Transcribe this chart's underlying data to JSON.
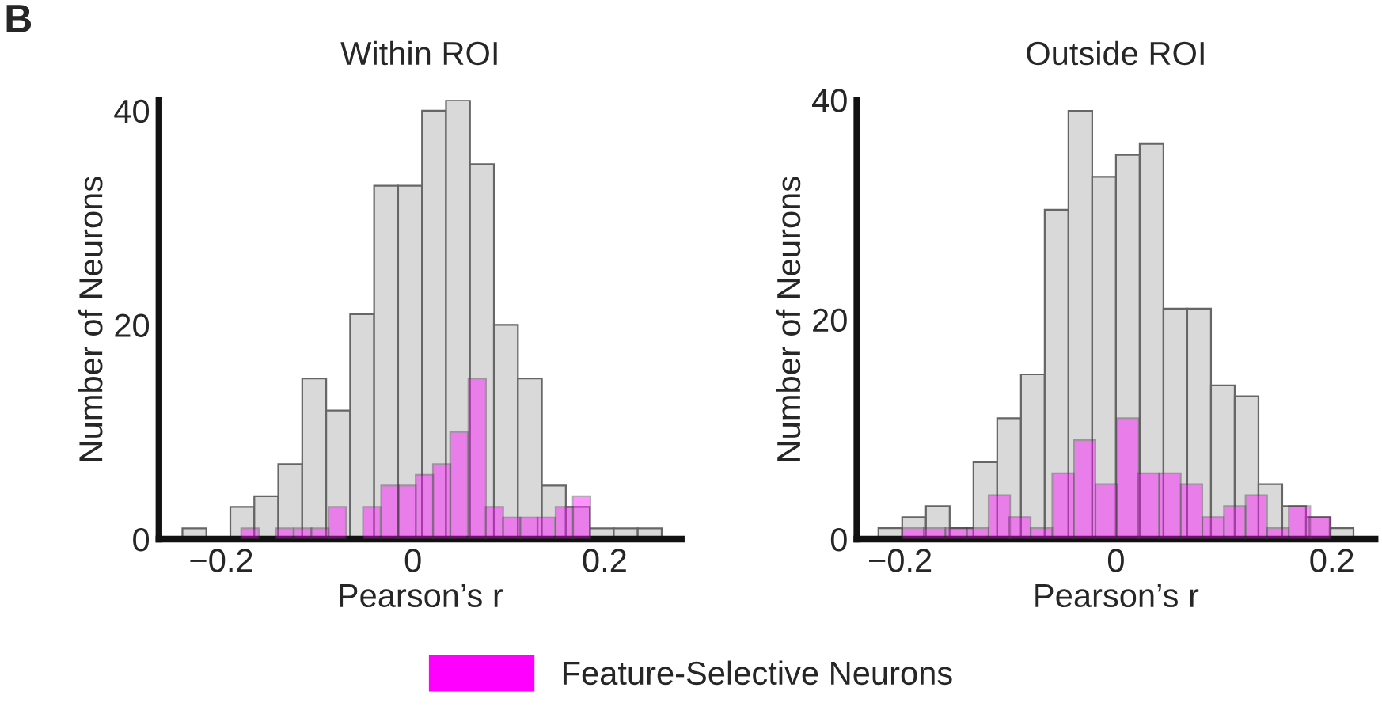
{
  "chart_data": [
    {
      "type": "bar",
      "title": "Within ROI",
      "xlabel": "Pearson’s r",
      "ylabel": "Number of Neurons",
      "annotations": [
        "B"
      ],
      "legend": "bottom",
      "xlim": [
        -0.265,
        0.28
      ],
      "ylim": [
        0,
        41
      ],
      "xticks": [
        {
          "value": -0.2,
          "label": "−0.2"
        },
        0,
        0.2
      ],
      "yticks": [
        0,
        20,
        40
      ],
      "series": [
        {
          "color": "#d9d9d9",
          "x": [
            -0.228,
            -0.203,
            -0.178,
            -0.153,
            -0.128,
            -0.103,
            -0.078,
            -0.053,
            -0.028,
            -0.003,
            0.022,
            0.047,
            0.072,
            0.097,
            0.122,
            0.147,
            0.172,
            0.197,
            0.222,
            0.247
          ],
          "values": [
            1,
            0,
            3,
            4,
            7,
            15,
            12,
            21,
            33,
            33,
            40,
            41,
            35,
            20,
            15,
            5,
            3,
            1,
            1,
            1
          ]
        },
        {
          "name": "Feature-Selective Neurons",
          "color": "#ff00ff",
          "x": [
            -0.17,
            -0.152,
            -0.134,
            -0.115,
            -0.097,
            -0.079,
            -0.061,
            -0.043,
            -0.024,
            -0.006,
            0.012,
            0.03,
            0.048,
            0.067,
            0.085,
            0.103,
            0.121,
            0.139,
            0.158,
            0.176
          ],
          "values": [
            1,
            0,
            1,
            1,
            1,
            3,
            0,
            3,
            5,
            5,
            6,
            7,
            10,
            15,
            3,
            2,
            2,
            2,
            3,
            4
          ]
        }
      ]
    },
    {
      "type": "bar",
      "title": "Outside ROI",
      "xlabel": "Pearson’s r",
      "ylabel": "Number of Neurons",
      "xlim": [
        -0.24,
        0.24
      ],
      "ylim": [
        0,
        40
      ],
      "xticks": [
        {
          "value": -0.2,
          "label": "−0.2"
        },
        0,
        0.2
      ],
      "yticks": [
        0,
        20,
        40
      ],
      "series": [
        {
          "color": "#d9d9d9",
          "x": [
            -0.209,
            -0.187,
            -0.165,
            -0.143,
            -0.121,
            -0.099,
            -0.077,
            -0.055,
            -0.033,
            -0.011,
            0.011,
            0.033,
            0.055,
            0.077,
            0.099,
            0.121,
            0.143,
            0.165,
            0.187,
            0.209
          ],
          "values": [
            1,
            2,
            3,
            1,
            7,
            11,
            15,
            30,
            39,
            33,
            35,
            36,
            21,
            21,
            14,
            13,
            5,
            3,
            2,
            1
          ]
        },
        {
          "color": "#ff00ff",
          "x": [
            -0.188,
            -0.168,
            -0.148,
            -0.128,
            -0.108,
            -0.089,
            -0.069,
            -0.049,
            -0.029,
            -0.009,
            0.011,
            0.03,
            0.05,
            0.07,
            0.09,
            0.11,
            0.13,
            0.15,
            0.17,
            0.189
          ],
          "values": [
            1,
            1,
            1,
            1,
            4,
            2,
            1,
            6,
            9,
            5,
            11,
            6,
            6,
            5,
            2,
            3,
            4,
            1,
            3,
            2
          ]
        }
      ]
    }
  ]
}
